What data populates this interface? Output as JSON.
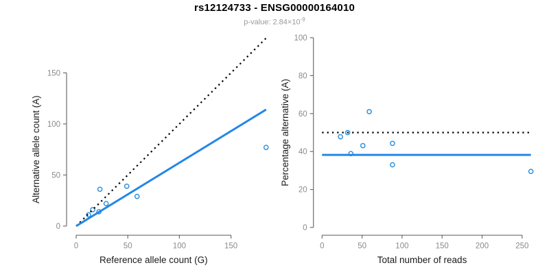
{
  "header": {
    "title": "rs12124733 - ENSG00000164010",
    "pvalue_text": "p-value: 2.84×10",
    "pvalue_exponent": "-9"
  },
  "colors": {
    "point_stroke": "#3092dc",
    "fit_line": "#2287e8",
    "identity_line": "#000000",
    "axis_line": "#6e6e6e",
    "tick_label": "#8a8a8a",
    "axis_label": "#1a1a1a",
    "title": "#000000",
    "subtitle": "#9a9a9a"
  },
  "chart_data": [
    {
      "type": "scatter",
      "name": "allele-counts",
      "xlabel": "Reference allele count (G)",
      "ylabel": "Alternative allele count (A)",
      "xlim": [
        0,
        190
      ],
      "ylim": [
        0,
        185
      ],
      "xticks": [
        0,
        50,
        100,
        150
      ],
      "yticks": [
        0,
        50,
        100,
        150
      ],
      "grid": false,
      "legend": "none",
      "points": [
        [
          12,
          11
        ],
        [
          16,
          16
        ],
        [
          22,
          14
        ],
        [
          29,
          22
        ],
        [
          23,
          36
        ],
        [
          49,
          39
        ],
        [
          59,
          29
        ],
        [
          184,
          77
        ]
      ],
      "lines": [
        {
          "name": "identity-line",
          "style": "dotted",
          "slope": 1,
          "intercept": 0,
          "x_range": [
            0,
            184
          ]
        },
        {
          "name": "fit-line",
          "style": "solid",
          "slope": 0.62,
          "intercept": 0,
          "x_range": [
            0,
            184
          ]
        }
      ]
    },
    {
      "type": "scatter",
      "name": "percentage",
      "xlabel": "Total number of reads",
      "ylabel": "Percentage alternative (A)",
      "xlim": [
        0,
        265
      ],
      "ylim": [
        0,
        100
      ],
      "xticks": [
        0,
        50,
        100,
        150,
        200,
        250
      ],
      "yticks": [
        0,
        20,
        40,
        60,
        80,
        100
      ],
      "grid": false,
      "legend": "none",
      "points": [
        [
          23,
          47.8
        ],
        [
          32,
          50
        ],
        [
          36,
          38.9
        ],
        [
          51,
          43.1
        ],
        [
          59,
          61
        ],
        [
          88,
          44.3
        ],
        [
          88,
          33
        ],
        [
          261,
          29.5
        ]
      ],
      "lines": [
        {
          "name": "expected-50-line",
          "style": "dotted",
          "y": 50,
          "x_range": [
            0,
            261
          ]
        },
        {
          "name": "mean-percentage-line",
          "style": "solid",
          "y": 38.2,
          "x_range": [
            0,
            261
          ]
        }
      ]
    }
  ]
}
